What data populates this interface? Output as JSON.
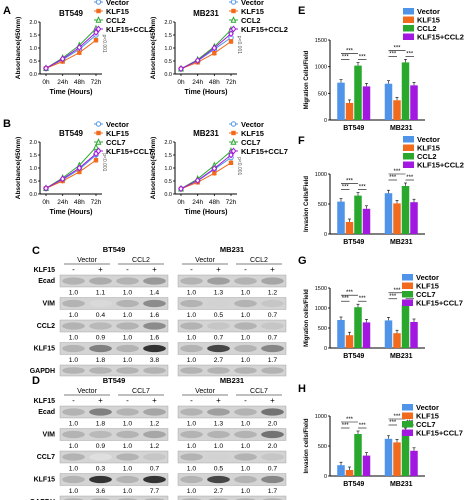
{
  "panels": {
    "A": "A",
    "B": "B",
    "C": "C",
    "D": "D",
    "E": "E",
    "F": "F",
    "G": "G",
    "H": "H"
  },
  "colors": {
    "blue": "#4f94e8",
    "orange": "#f26a1b",
    "green": "#2aa82e",
    "purple": "#a218e0"
  },
  "line_common": {
    "xticks": [
      "0h",
      "24h",
      "48h",
      "72h"
    ],
    "xlabel": "Time (Hours)",
    "ylabel": "Absorbance(450nm)",
    "yticks": [
      "0.0",
      "0.5",
      "1.0",
      "1.5",
      "2.0"
    ],
    "pvalue": "p<0.001"
  },
  "bar_common": {
    "cells": [
      "BT549",
      "MB231"
    ],
    "yticks_mig": [
      "0",
      "500",
      "1000",
      "1500"
    ],
    "yticks_inv": [
      "0",
      "500",
      "1000"
    ],
    "sig": "***"
  },
  "blots": {
    "kl": "KLF15",
    "minus": "-",
    "plus": "+",
    "vec": "Vector",
    "C": {
      "left": "BT549",
      "right": "MB231",
      "treat": "CCL2",
      "rows": [
        {
          "label": "Ecad",
          "l": [
            "1.0",
            "1.1",
            "1.0",
            "1.4"
          ],
          "r": [
            "1.0",
            "1.3",
            "1.0",
            "1.2"
          ]
        },
        {
          "label": "VIM",
          "l": [
            "1.0",
            "0.4",
            "1.0",
            "1.6"
          ],
          "r": [
            "1.0",
            "0.5",
            "1.0",
            "0.7"
          ]
        },
        {
          "label": "CCL2",
          "l": [
            "1.0",
            "0.9",
            "1.0",
            "1.6"
          ],
          "r": [
            "1.0",
            "0.7",
            "1.0",
            "0.7"
          ]
        },
        {
          "label": "KLF15",
          "l": [
            "1.0",
            "1.8",
            "1.0",
            "3.8"
          ],
          "r": [
            "1.0",
            "2.7",
            "1.0",
            "1.7"
          ]
        },
        {
          "label": "GAPDH",
          "l": [],
          "r": []
        }
      ]
    },
    "D": {
      "left": "BT549",
      "right": "MB231",
      "treat": "CCL7",
      "rows": [
        {
          "label": "Ecad",
          "l": [
            "1.0",
            "1.8",
            "1.0",
            "1.2"
          ],
          "r": [
            "1.0",
            "1.3",
            "1.0",
            "2.0"
          ]
        },
        {
          "label": "VIM",
          "l": [
            "1.0",
            "0.9",
            "1.0",
            "1.2"
          ],
          "r": [
            "1.0",
            "1.0",
            "1.0",
            "2.0"
          ]
        },
        {
          "label": "CCL7",
          "l": [
            "1.0",
            "0.3",
            "1.0",
            "0.7"
          ],
          "r": [
            "1.0",
            "0.5",
            "1.0",
            "0.7"
          ]
        },
        {
          "label": "KLF15",
          "l": [
            "1.0",
            "3.6",
            "1.0",
            "7.7"
          ],
          "r": [
            "1.0",
            "2.7",
            "1.0",
            "1.7"
          ]
        },
        {
          "label": "GAPDH",
          "l": [],
          "r": []
        }
      ]
    }
  },
  "chart_data": [
    {
      "id": "A-BT549",
      "type": "line",
      "title": "BT549",
      "x": [
        "0h",
        "24h",
        "48h",
        "72h"
      ],
      "xlabel": "Time (Hours)",
      "ylabel": "Absorbance(450nm)",
      "ylim": [
        0,
        2
      ],
      "series": [
        {
          "name": "Vector",
          "values": [
            0.22,
            0.55,
            0.95,
            1.5
          ]
        },
        {
          "name": "KLF15",
          "values": [
            0.22,
            0.48,
            0.82,
            1.3
          ]
        },
        {
          "name": "CCL2",
          "values": [
            0.22,
            0.62,
            1.1,
            1.75
          ]
        },
        {
          "name": "KLF15+CCL2",
          "values": [
            0.22,
            0.58,
            1.02,
            1.6
          ]
        }
      ]
    },
    {
      "id": "A-MB231",
      "type": "line",
      "title": "MB231",
      "x": [
        "0h",
        "24h",
        "48h",
        "72h"
      ],
      "xlabel": "Time (Hours)",
      "ylabel": "Absorbance(450nm)",
      "ylim": [
        0,
        2
      ],
      "series": [
        {
          "name": "Vector",
          "values": [
            0.2,
            0.5,
            0.95,
            1.4
          ]
        },
        {
          "name": "KLF15",
          "values": [
            0.2,
            0.45,
            0.8,
            1.25
          ]
        },
        {
          "name": "CCL2",
          "values": [
            0.2,
            0.55,
            1.05,
            1.7
          ]
        },
        {
          "name": "KLF15+CCL2",
          "values": [
            0.2,
            0.52,
            1.0,
            1.55
          ]
        }
      ]
    },
    {
      "id": "B-BT549",
      "type": "line",
      "title": "BT549",
      "x": [
        "0h",
        "24h",
        "48h",
        "72h"
      ],
      "xlabel": "Time (Hours)",
      "ylabel": "Absorbance(450nm)",
      "ylim": [
        0,
        2
      ],
      "series": [
        {
          "name": "Vector",
          "values": [
            0.22,
            0.55,
            0.95,
            1.5
          ]
        },
        {
          "name": "KLF15",
          "values": [
            0.22,
            0.5,
            0.85,
            1.3
          ]
        },
        {
          "name": "CCL7",
          "values": [
            0.22,
            0.62,
            1.1,
            1.8
          ]
        },
        {
          "name": "KLF15+CCL7",
          "values": [
            0.22,
            0.58,
            1.0,
            1.55
          ]
        }
      ]
    },
    {
      "id": "B-MB231",
      "type": "line",
      "title": "MB231",
      "x": [
        "0h",
        "24h",
        "48h",
        "72h"
      ],
      "xlabel": "Time (Hours)",
      "ylabel": "Absorbance(450nm)",
      "ylim": [
        0,
        2
      ],
      "series": [
        {
          "name": "Vector",
          "values": [
            0.2,
            0.5,
            0.95,
            1.4
          ]
        },
        {
          "name": "KLF15",
          "values": [
            0.2,
            0.45,
            0.8,
            1.2
          ]
        },
        {
          "name": "CCL7",
          "values": [
            0.2,
            0.58,
            1.1,
            1.65
          ]
        },
        {
          "name": "KLF15+CCL7",
          "values": [
            0.2,
            0.52,
            0.98,
            1.5
          ]
        }
      ]
    },
    {
      "id": "E",
      "type": "bar",
      "ylabel": "Migration Cells/Field",
      "categories": [
        "BT549",
        "MB231"
      ],
      "ylim": [
        0,
        1500
      ],
      "series": [
        {
          "name": "Vector",
          "values": [
            700,
            680
          ]
        },
        {
          "name": "KLF15",
          "values": [
            320,
            370
          ]
        },
        {
          "name": "CCL2",
          "values": [
            1020,
            1080
          ]
        },
        {
          "name": "KLF15+CCL2",
          "values": [
            630,
            650
          ]
        }
      ]
    },
    {
      "id": "F",
      "type": "bar",
      "ylabel": "Invasion Cells/Field",
      "categories": [
        "BT549",
        "MB231"
      ],
      "ylim": [
        0,
        1000
      ],
      "series": [
        {
          "name": "Vector",
          "values": [
            540,
            680
          ]
        },
        {
          "name": "KLF15",
          "values": [
            200,
            510
          ]
        },
        {
          "name": "CCL2",
          "values": [
            640,
            800
          ]
        },
        {
          "name": "KLF15+CCL2",
          "values": [
            420,
            530
          ]
        }
      ]
    },
    {
      "id": "G",
      "type": "bar",
      "ylabel": "Migration cells/Field",
      "categories": [
        "BT549",
        "MB231"
      ],
      "ylim": [
        0,
        1500
      ],
      "series": [
        {
          "name": "Vector",
          "values": [
            700,
            690
          ]
        },
        {
          "name": "KLF15",
          "values": [
            320,
            370
          ]
        },
        {
          "name": "CCL7",
          "values": [
            1020,
            1080
          ]
        },
        {
          "name": "KLF15+CCL7",
          "values": [
            640,
            650
          ]
        }
      ]
    },
    {
      "id": "H",
      "type": "bar",
      "ylabel": "Invasion cells/Field",
      "categories": [
        "BT549",
        "MB231"
      ],
      "ylim": [
        0,
        1000
      ],
      "series": [
        {
          "name": "Vector",
          "values": [
            180,
            620
          ]
        },
        {
          "name": "KLF15",
          "values": [
            100,
            560
          ]
        },
        {
          "name": "CCL7",
          "values": [
            700,
            750
          ]
        },
        {
          "name": "KLF15+CCL7",
          "values": [
            340,
            420
          ]
        }
      ]
    }
  ]
}
